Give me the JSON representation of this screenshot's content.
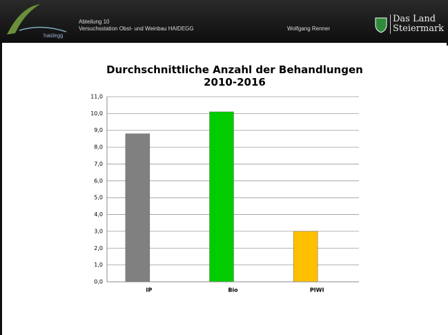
{
  "header": {
    "department": "Abteilung 10",
    "station": "Versuchsstation Obst- und Weinbau HAIDEGG",
    "author": "Wolfgang Renner",
    "logo_left": "haidegg",
    "logo_right_line1": "Das Land",
    "logo_right_line2": "Steiermark"
  },
  "chart_data": {
    "type": "bar",
    "title": "Durchschnittliche Anzahl der Behandlungen 2010-2016",
    "categories": [
      "IP",
      "Bio",
      "PIWI"
    ],
    "values": [
      8.8,
      10.1,
      3.0
    ],
    "colors": [
      "#808080",
      "#00cc00",
      "#ffc000"
    ],
    "ylim": [
      0,
      11
    ],
    "yticks": [
      {
        "value": 0,
        "label": "0,0"
      },
      {
        "value": 1,
        "label": "1,0"
      },
      {
        "value": 2,
        "label": "2,0"
      },
      {
        "value": 3,
        "label": "3,0"
      },
      {
        "value": 4,
        "label": "4,0"
      },
      {
        "value": 5,
        "label": "5,0"
      },
      {
        "value": 6,
        "label": "6,0"
      },
      {
        "value": 7,
        "label": "7,0"
      },
      {
        "value": 8,
        "label": "8,0"
      },
      {
        "value": 9,
        "label": "9,0"
      },
      {
        "value": 10,
        "label": "10,0"
      },
      {
        "value": 11,
        "label": "11,0"
      }
    ],
    "grid": true
  }
}
